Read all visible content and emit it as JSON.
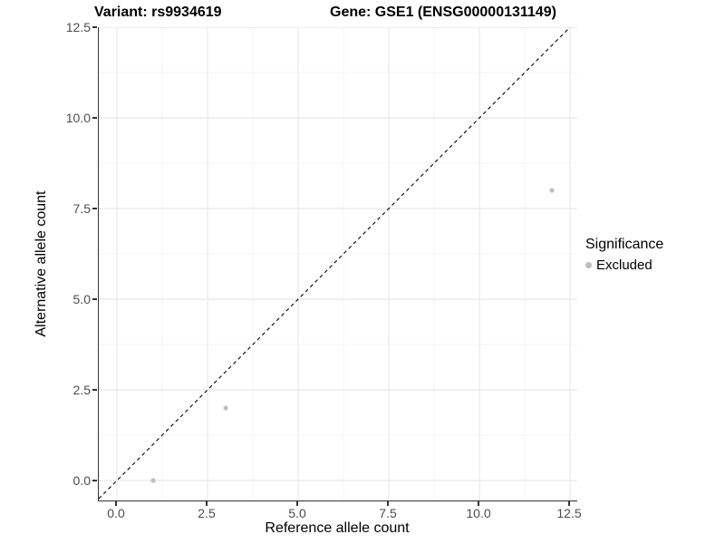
{
  "header": {
    "variant_title": "Variant: rs9934619",
    "gene_title": "Gene: GSE1 (ENSG00000131149)"
  },
  "chart_data": {
    "type": "scatter",
    "xlabel": "Reference allele count",
    "ylabel": "Alternative allele count",
    "xlim": [
      -0.5,
      12.7
    ],
    "ylim": [
      -0.55,
      12.5
    ],
    "ticks": [
      0,
      2.5,
      5,
      7.5,
      10,
      12.5
    ],
    "tick_labels": [
      "0.0",
      "2.5",
      "5.0",
      "7.5",
      "10.0",
      "12.5"
    ],
    "minor_ticks": [
      1.25,
      3.75,
      6.25,
      8.75,
      11.25
    ],
    "grid": true,
    "identity_line": {
      "style": "dashed",
      "color": "#000000"
    },
    "series": [
      {
        "name": "Excluded",
        "color": "#bebebe",
        "points": [
          [
            1,
            0
          ],
          [
            3,
            2
          ],
          [
            12,
            8
          ]
        ]
      }
    ],
    "legend": {
      "title": "Significance",
      "position": "right",
      "entries": [
        {
          "label": "Excluded",
          "color": "#bebebe"
        }
      ]
    }
  },
  "colors": {
    "background": "#ffffff",
    "grid_major": "#e8e8e8",
    "grid_minor": "#f1f1f1",
    "axis_line": "#333333",
    "tick_label": "#4d4d4d",
    "point": "#bebebe",
    "identity_line": "#000000"
  }
}
